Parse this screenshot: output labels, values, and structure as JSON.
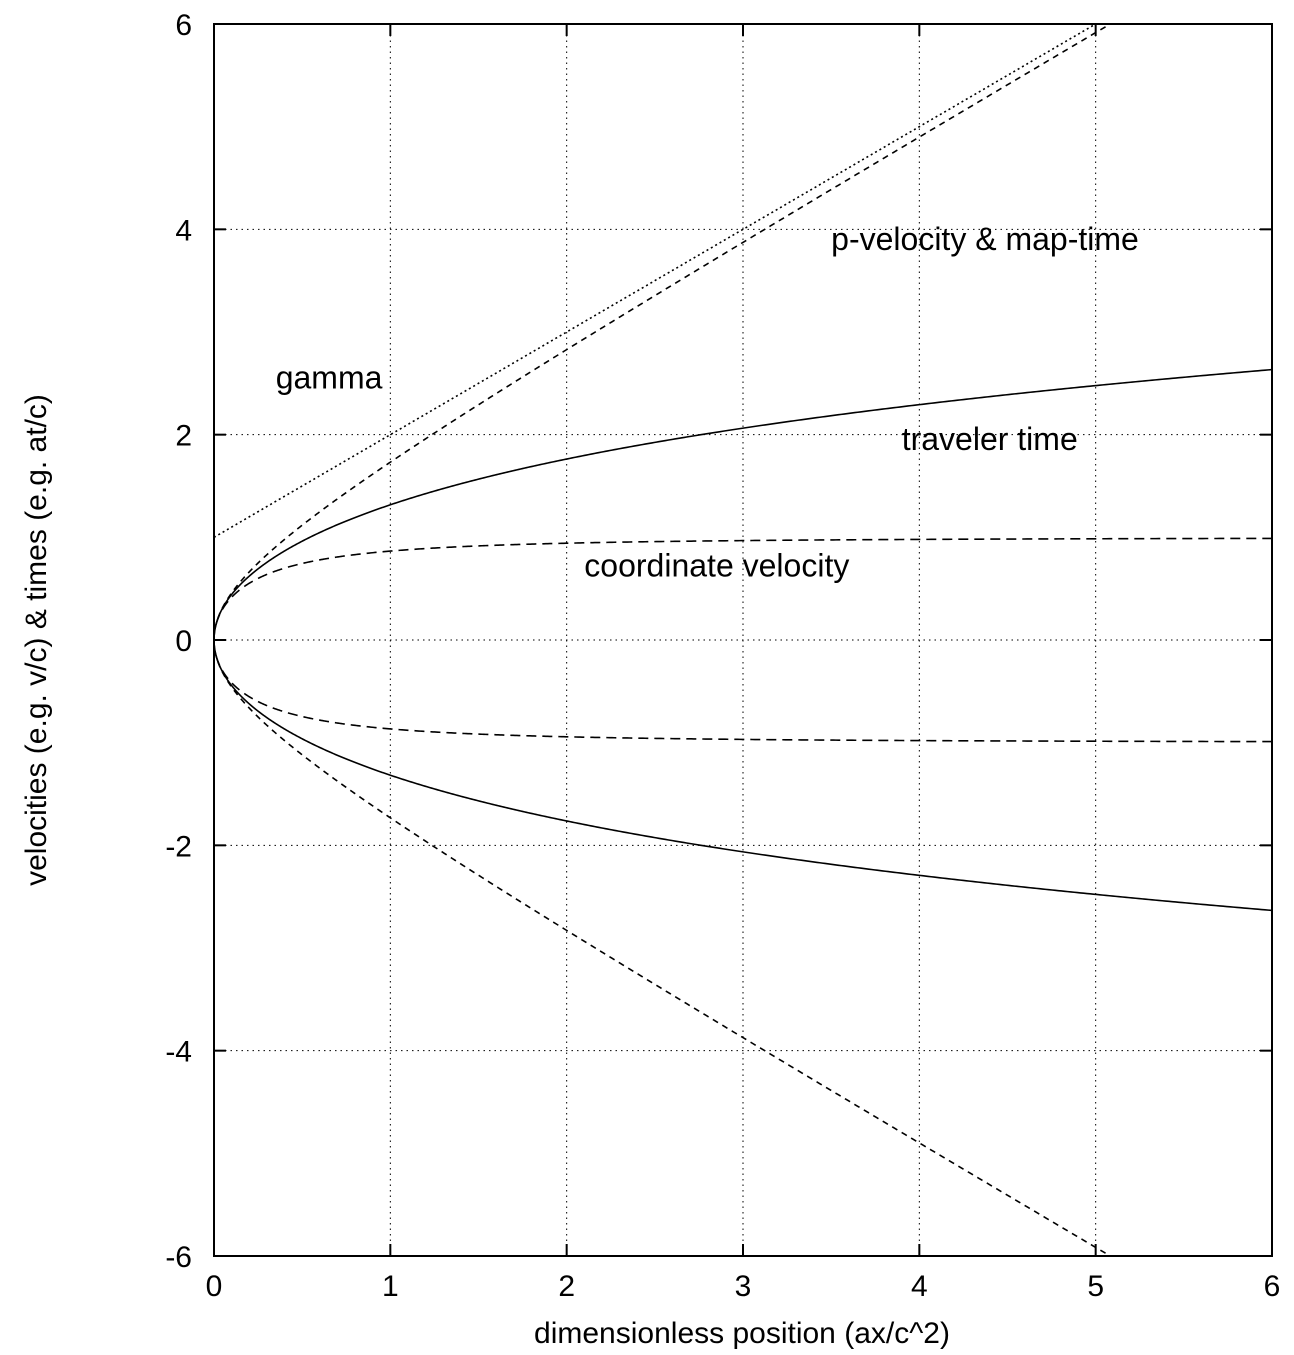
{
  "chart_data": {
    "type": "line",
    "title": "",
    "xlabel": "dimensionless position (ax/c^2)",
    "ylabel": "velocities (e.g. v/c) & times (e.g. at/c)",
    "xlim": [
      0,
      6
    ],
    "ylim": [
      -6,
      6
    ],
    "xticks": [
      "0",
      "1",
      "2",
      "3",
      "4",
      "5",
      "6"
    ],
    "yticks": [
      "-6",
      "-4",
      "-2",
      "0",
      "2",
      "4",
      "6"
    ],
    "grid": true,
    "colors": {
      "line": "#000000",
      "grid": "#000000",
      "background": "#ffffff"
    },
    "series": [
      {
        "key": "gamma",
        "style": "dotted",
        "relation": "gamma = 1 + x",
        "x": [
          0,
          0.5,
          1,
          2,
          3,
          4,
          5
        ],
        "y": [
          1,
          1.5,
          2,
          3,
          4,
          5,
          6
        ]
      },
      {
        "key": "p-velocity-pos",
        "style": "dashed",
        "relation": "sqrt(x^2 + 2x)",
        "x": [
          0,
          0.05,
          0.2,
          0.5,
          1,
          2,
          3,
          4,
          5
        ],
        "y": [
          0,
          0.32,
          0.66,
          1.12,
          1.73,
          2.83,
          3.87,
          4.9,
          5.92
        ]
      },
      {
        "key": "p-velocity-neg",
        "style": "dashed",
        "relation": "-sqrt(x^2 + 2x)",
        "x": [
          0,
          0.05,
          0.2,
          0.5,
          1,
          2,
          3,
          4,
          5
        ],
        "y": [
          0,
          -0.32,
          -0.66,
          -1.12,
          -1.73,
          -2.83,
          -3.87,
          -4.9,
          -5.92
        ]
      },
      {
        "key": "traveler-time-pos",
        "style": "solid",
        "relation": "acosh(1 + x)",
        "x": [
          0,
          0.05,
          0.2,
          0.5,
          1,
          2,
          3,
          4,
          5,
          6
        ],
        "y": [
          0,
          0.31,
          0.62,
          0.96,
          1.32,
          1.76,
          2.06,
          2.29,
          2.48,
          2.63
        ]
      },
      {
        "key": "traveler-time-neg",
        "style": "solid",
        "relation": "-acosh(1 + x)",
        "x": [
          0,
          0.05,
          0.2,
          0.5,
          1,
          2,
          3,
          4,
          5,
          6
        ],
        "y": [
          0,
          -0.31,
          -0.62,
          -0.96,
          -1.32,
          -1.76,
          -2.06,
          -2.29,
          -2.48,
          -2.63
        ]
      },
      {
        "key": "coordinate-velocity-pos",
        "style": "longdash",
        "relation": "sqrt(x^2 + 2x) / (1 + x)",
        "x": [
          0,
          0.05,
          0.2,
          0.5,
          1,
          2,
          3,
          4,
          5,
          6
        ],
        "y": [
          0,
          0.3,
          0.55,
          0.75,
          0.87,
          0.94,
          0.97,
          0.98,
          0.99,
          0.99
        ]
      },
      {
        "key": "coordinate-velocity-neg",
        "style": "longdash",
        "relation": "-sqrt(x^2 + 2x) / (1 + x)",
        "x": [
          0,
          0.05,
          0.2,
          0.5,
          1,
          2,
          3,
          4,
          5,
          6
        ],
        "y": [
          0,
          -0.3,
          -0.55,
          -0.75,
          -0.87,
          -0.94,
          -0.97,
          -0.98,
          -0.99,
          -0.99
        ]
      }
    ],
    "annotations": [
      {
        "text": "gamma",
        "x": 0.35,
        "y": 2.45
      },
      {
        "text": "p-velocity & map-time",
        "x": 3.5,
        "y": 3.8
      },
      {
        "text": "traveler time",
        "x": 3.9,
        "y": 1.85
      },
      {
        "text": "coordinate velocity",
        "x": 2.1,
        "y": 0.62
      }
    ]
  }
}
